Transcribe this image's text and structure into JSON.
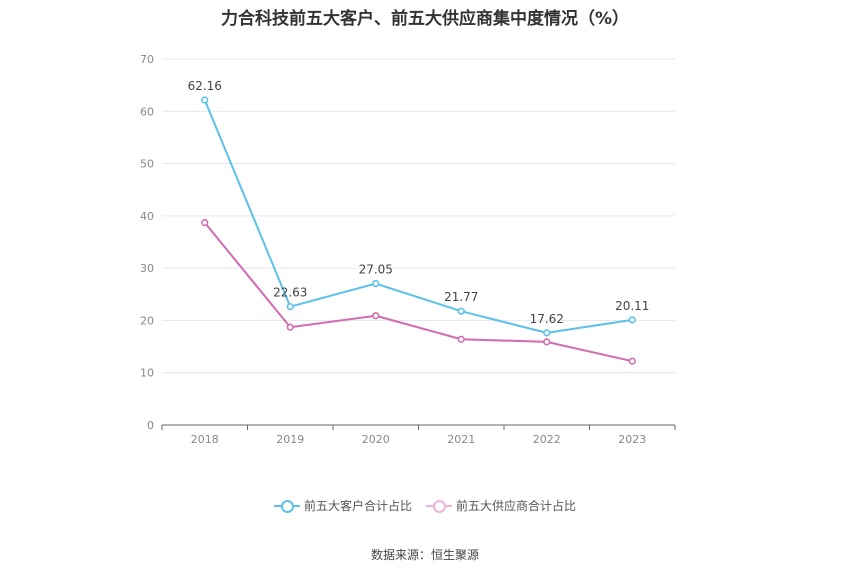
{
  "chart_data": {
    "type": "line",
    "title": "力合科技前五大客户、前五大供应商集中度情况（%）",
    "categories": [
      "2018",
      "2019",
      "2020",
      "2021",
      "2022",
      "2023"
    ],
    "ylim": [
      0,
      70
    ],
    "yticks": [
      0,
      10,
      20,
      30,
      40,
      50,
      60,
      70
    ],
    "grid": true,
    "legend_position": "bottom",
    "series": [
      {
        "name": "前五大客户合计占比",
        "color": "#5bc0eb",
        "values": [
          62.16,
          22.63,
          27.05,
          21.77,
          17.62,
          20.11
        ],
        "labels": [
          "62.16",
          "22.63",
          "27.05",
          "21.77",
          "17.62",
          "20.11"
        ]
      },
      {
        "name": "前五大供应商合计占比",
        "color": "#d36bb1",
        "values": [
          38.7,
          18.7,
          20.9,
          16.4,
          15.9,
          12.2
        ],
        "labels": []
      }
    ]
  },
  "source": "数据来源：恒生聚源"
}
